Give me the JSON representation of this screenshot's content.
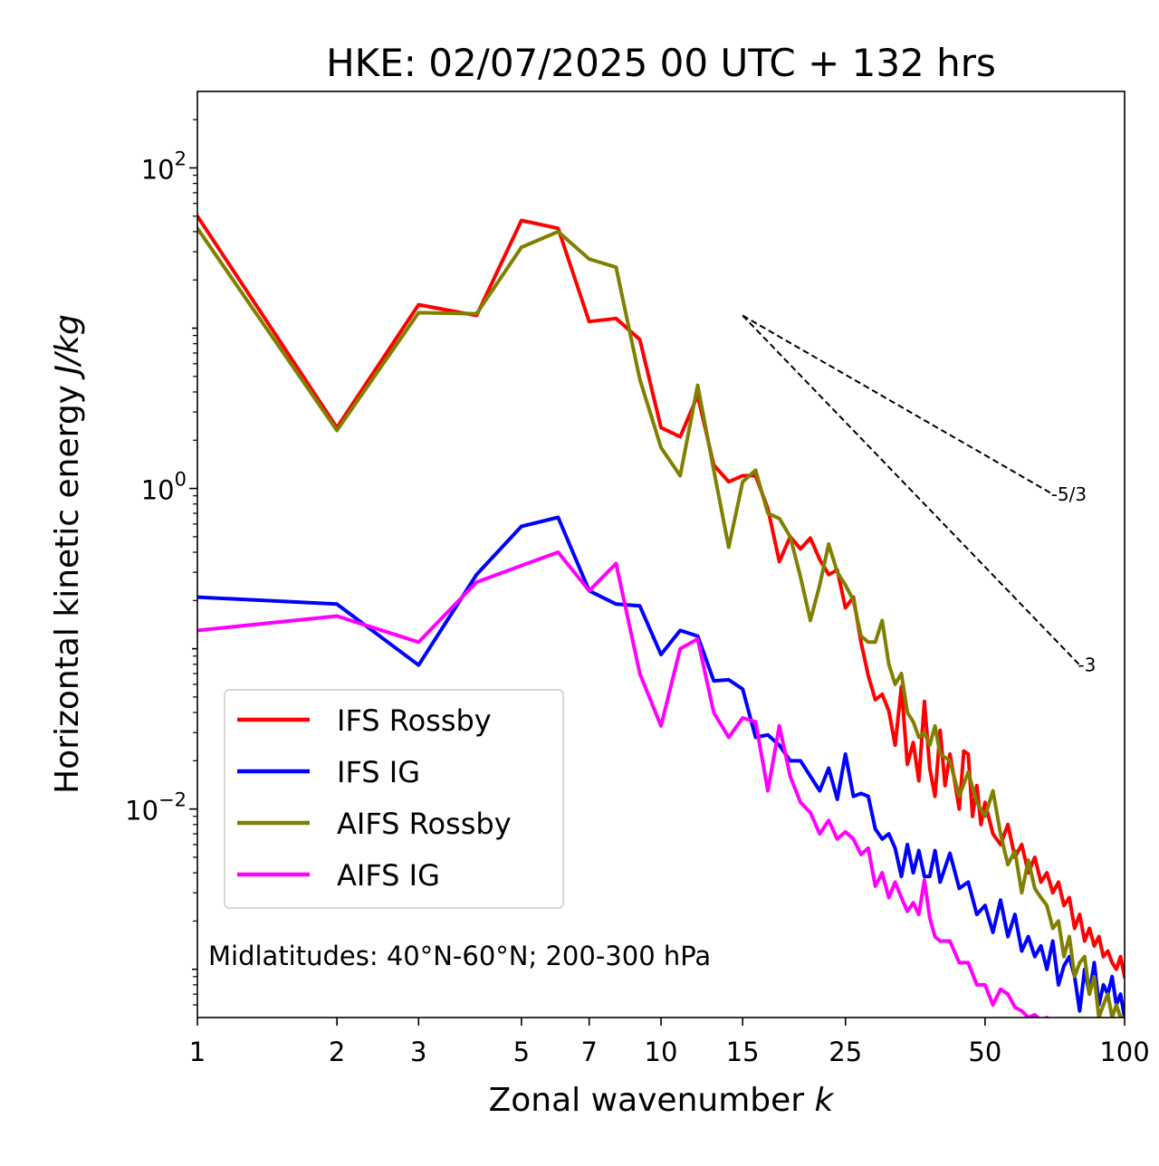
{
  "chart_data": {
    "type": "line",
    "title": "HKE: 02/07/2025 00 UTC + 132 hrs",
    "xlabel": "Zonal wavenumber",
    "xlabel_var": "k",
    "ylabel": "Horizontal kinetic energy",
    "ylabel_unit": "J/kg",
    "xscale": "log",
    "yscale": "log",
    "xlim": [
      1,
      100
    ],
    "ylim": [
      0.0005,
      300
    ],
    "x_ticks": [
      1,
      2,
      3,
      5,
      7,
      10,
      15,
      25,
      50,
      100
    ],
    "x_tick_labels": [
      "1",
      "2",
      "3",
      "5",
      "7",
      "10",
      "15",
      "25",
      "50",
      "100"
    ],
    "y_ticks": [
      0.01,
      1,
      100
    ],
    "y_tick_base": "10",
    "y_tick_exponents": [
      "−2",
      "0",
      "2"
    ],
    "grid": false,
    "legend_position": "lower-left",
    "annotation": "Midlatitudes: 40°N-60°N; 200-300 hPa",
    "reference_slopes": [
      {
        "label": "-5/3",
        "slope": -1.6667,
        "x_start": 15,
        "y_start": 12,
        "x_end": 70
      },
      {
        "label": "-3",
        "slope": -3,
        "x_start": 15,
        "y_start": 12,
        "x_end": 80
      }
    ],
    "series": [
      {
        "name": "IFS Rossby",
        "color": "#ff0000",
        "x": [
          1,
          2,
          3,
          4,
          5,
          6,
          7,
          8,
          9,
          10,
          11,
          12,
          13,
          14,
          15,
          16,
          17,
          18,
          19,
          20,
          21,
          22,
          23,
          24,
          25,
          26,
          27,
          28,
          29,
          30,
          31,
          32,
          33,
          34,
          35,
          36,
          37,
          38,
          39,
          40,
          41,
          42,
          43,
          44,
          45,
          46,
          47,
          48,
          49,
          50,
          52,
          54,
          56,
          58,
          60,
          62,
          64,
          66,
          68,
          70,
          72,
          74,
          76,
          78,
          80,
          82,
          84,
          86,
          88,
          90,
          92,
          94,
          96,
          98,
          100
        ],
        "values": [
          50,
          2.4,
          14,
          12,
          47,
          42,
          11,
          11.5,
          8.5,
          2.4,
          2.1,
          3.8,
          1.4,
          1.1,
          1.2,
          1.2,
          0.75,
          0.35,
          0.5,
          0.42,
          0.49,
          0.36,
          0.29,
          0.31,
          0.18,
          0.21,
          0.11,
          0.068,
          0.048,
          0.052,
          0.041,
          0.025,
          0.058,
          0.019,
          0.026,
          0.015,
          0.047,
          0.018,
          0.012,
          0.031,
          0.014,
          0.022,
          0.015,
          0.01,
          0.023,
          0.022,
          0.009,
          0.014,
          0.008,
          0.011,
          0.007,
          0.006,
          0.008,
          0.005,
          0.006,
          0.004,
          0.005,
          0.0035,
          0.004,
          0.003,
          0.0035,
          0.0025,
          0.0028,
          0.0018,
          0.0022,
          0.0015,
          0.0018,
          0.0014,
          0.0016,
          0.0012,
          0.0013,
          0.0011,
          0.001,
          0.0012,
          0.0009
        ]
      },
      {
        "name": "IFS IG",
        "color": "#0000ff",
        "x": [
          1,
          2,
          3,
          4,
          5,
          6,
          7,
          8,
          9,
          10,
          11,
          12,
          13,
          14,
          15,
          16,
          17,
          18,
          19,
          20,
          21,
          22,
          23,
          24,
          25,
          26,
          27,
          28,
          29,
          30,
          31,
          32,
          33,
          34,
          35,
          36,
          37,
          38,
          39,
          40,
          42,
          44,
          46,
          48,
          50,
          52,
          54,
          56,
          58,
          60,
          62,
          64,
          66,
          68,
          70,
          72,
          74,
          76,
          78,
          80,
          82,
          84,
          86,
          88,
          90,
          92,
          94,
          96,
          98,
          100
        ],
        "values": [
          0.21,
          0.19,
          0.079,
          0.29,
          0.58,
          0.66,
          0.23,
          0.19,
          0.185,
          0.092,
          0.13,
          0.12,
          0.063,
          0.064,
          0.056,
          0.028,
          0.029,
          0.025,
          0.02,
          0.02,
          0.016,
          0.013,
          0.018,
          0.0115,
          0.022,
          0.012,
          0.0125,
          0.012,
          0.0075,
          0.0065,
          0.007,
          0.0057,
          0.0038,
          0.006,
          0.004,
          0.0055,
          0.0038,
          0.0038,
          0.0055,
          0.0035,
          0.0053,
          0.0032,
          0.0035,
          0.0022,
          0.0025,
          0.0017,
          0.0027,
          0.0016,
          0.0022,
          0.0013,
          0.0016,
          0.0012,
          0.0014,
          0.001,
          0.0015,
          0.0008,
          0.00105,
          0.0012,
          0.0009,
          0.00055,
          0.001,
          0.0007,
          0.0011,
          0.0006,
          0.0008,
          0.0007,
          0.0009,
          0.0006,
          0.0007,
          0.0005
        ]
      },
      {
        "name": "AIFS Rossby",
        "color": "#808000",
        "x": [
          1,
          2,
          3,
          4,
          5,
          6,
          7,
          8,
          9,
          10,
          11,
          12,
          13,
          14,
          15,
          16,
          17,
          18,
          19,
          20,
          21,
          22,
          23,
          24,
          25,
          26,
          27,
          28,
          29,
          30,
          31,
          32,
          33,
          34,
          35,
          36,
          37,
          38,
          39,
          40,
          42,
          44,
          46,
          48,
          50,
          52,
          54,
          56,
          58,
          60,
          62,
          64,
          66,
          68,
          70,
          72,
          74,
          76,
          78,
          80,
          82,
          84,
          86,
          88,
          90,
          92,
          94,
          96,
          98,
          100
        ],
        "values": [
          42,
          2.3,
          12.5,
          12.3,
          32,
          40,
          27,
          24,
          4.8,
          1.8,
          1.2,
          4.4,
          1.3,
          0.43,
          1.1,
          1.3,
          0.7,
          0.65,
          0.5,
          0.28,
          0.15,
          0.25,
          0.45,
          0.3,
          0.25,
          0.2,
          0.12,
          0.11,
          0.11,
          0.15,
          0.08,
          0.06,
          0.07,
          0.04,
          0.035,
          0.028,
          0.03,
          0.025,
          0.033,
          0.022,
          0.02,
          0.012,
          0.017,
          0.011,
          0.009,
          0.013,
          0.007,
          0.0045,
          0.0055,
          0.003,
          0.0048,
          0.0032,
          0.0028,
          0.0025,
          0.0018,
          0.002,
          0.0012,
          0.0016,
          0.0009,
          0.0011,
          0.0012,
          0.0007,
          0.0009,
          0.0005,
          0.0006,
          0.0007,
          0.0005,
          0.0006,
          0.0005,
          0.0005
        ]
      },
      {
        "name": "AIFS IG",
        "color": "#ff00ff",
        "x": [
          1,
          2,
          3,
          4,
          5,
          6,
          7,
          8,
          9,
          10,
          11,
          12,
          13,
          14,
          15,
          16,
          17,
          18,
          19,
          20,
          21,
          22,
          23,
          24,
          25,
          26,
          27,
          28,
          29,
          30,
          31,
          32,
          33,
          34,
          35,
          36,
          37,
          38,
          39,
          40,
          42,
          44,
          46,
          48,
          50,
          52,
          54,
          56,
          58,
          60,
          62,
          64,
          66,
          68,
          70,
          72,
          74,
          76,
          78,
          80,
          82,
          84,
          86,
          88,
          90,
          92,
          94,
          96,
          98,
          100
        ],
        "values": [
          0.13,
          0.16,
          0.11,
          0.26,
          0.33,
          0.4,
          0.23,
          0.34,
          0.07,
          0.033,
          0.1,
          0.115,
          0.04,
          0.028,
          0.037,
          0.035,
          0.013,
          0.033,
          0.016,
          0.011,
          0.0095,
          0.007,
          0.0085,
          0.0065,
          0.0072,
          0.0065,
          0.0052,
          0.0057,
          0.0033,
          0.004,
          0.0028,
          0.0035,
          0.0028,
          0.0023,
          0.0026,
          0.0022,
          0.0036,
          0.0021,
          0.0016,
          0.0015,
          0.0015,
          0.0011,
          0.0011,
          0.0008,
          0.0008,
          0.0006,
          0.00075,
          0.0007,
          0.00058,
          0.00055,
          0.0005,
          0.00052,
          0.00048,
          0.0005,
          0.00045,
          0.00047,
          0.00044,
          0.00046,
          0.00043,
          0.00045,
          0.00042,
          0.00044,
          0.00041,
          0.00043,
          0.0004,
          0.00042,
          0.0004,
          0.00041,
          0.0004,
          0.0004
        ]
      }
    ]
  }
}
